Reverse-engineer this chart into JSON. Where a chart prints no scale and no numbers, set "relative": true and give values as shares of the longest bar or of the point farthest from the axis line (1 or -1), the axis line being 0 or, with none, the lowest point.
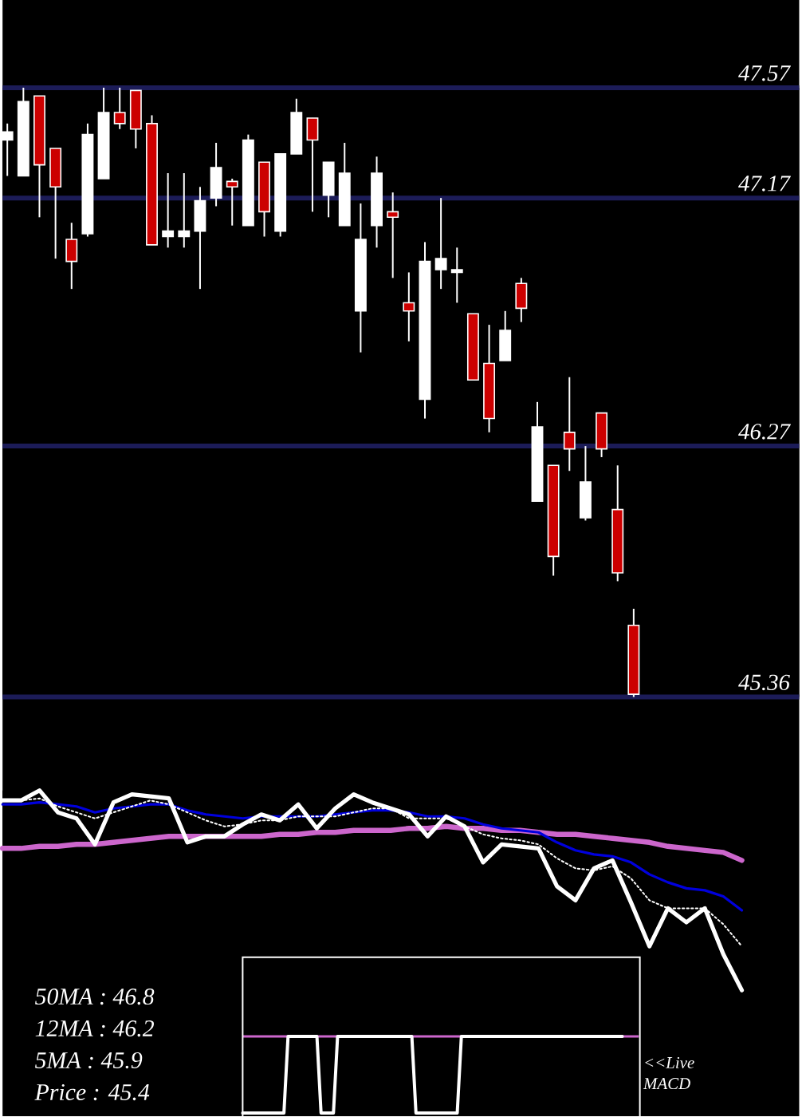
{
  "chart_data": [
    {
      "type": "candlestick",
      "categories": [
        null,
        null,
        null,
        null,
        null,
        null,
        null,
        null,
        null,
        null,
        null,
        null,
        null,
        null,
        null,
        null,
        null,
        null,
        null,
        null,
        null,
        null,
        null,
        null,
        null,
        null,
        null,
        null,
        null,
        null,
        null,
        null,
        null,
        null,
        null,
        null,
        null,
        null,
        null,
        null
      ],
      "ohlc": [
        [
          47.38,
          47.44,
          47.25,
          47.41
        ],
        [
          47.25,
          47.57,
          47.25,
          47.52
        ],
        [
          47.54,
          47.54,
          47.1,
          47.29
        ],
        [
          47.35,
          47.35,
          46.95,
          47.21
        ],
        [
          47.02,
          47.08,
          46.84,
          46.94
        ],
        [
          47.04,
          47.44,
          47.03,
          47.4
        ],
        [
          47.24,
          47.57,
          47.24,
          47.48
        ],
        [
          47.48,
          47.57,
          47.42,
          47.44
        ],
        [
          47.56,
          47.56,
          47.35,
          47.42
        ],
        [
          47.44,
          47.47,
          47.0,
          47.0
        ],
        [
          47.03,
          47.26,
          46.99,
          47.05
        ],
        [
          47.03,
          47.26,
          46.99,
          47.05
        ],
        [
          47.05,
          47.21,
          46.84,
          47.16
        ],
        [
          47.17,
          47.37,
          47.14,
          47.28
        ],
        [
          47.23,
          47.24,
          47.07,
          47.21
        ],
        [
          47.07,
          47.4,
          47.07,
          47.38
        ],
        [
          47.3,
          47.3,
          47.03,
          47.12
        ],
        [
          47.05,
          47.33,
          47.03,
          47.33
        ],
        [
          47.33,
          47.53,
          47.33,
          47.48
        ],
        [
          47.46,
          47.46,
          47.12,
          47.38
        ],
        [
          47.18,
          47.3,
          47.1,
          47.3
        ],
        [
          47.07,
          47.37,
          47.07,
          47.26
        ],
        [
          46.76,
          47.15,
          46.61,
          47.02
        ],
        [
          47.07,
          47.32,
          46.99,
          47.26
        ],
        [
          47.12,
          47.19,
          46.88,
          47.1
        ],
        [
          46.79,
          46.9,
          46.65,
          46.76
        ],
        [
          46.44,
          47.01,
          46.37,
          46.94
        ],
        [
          46.91,
          47.17,
          46.84,
          46.95
        ],
        [
          46.9,
          46.99,
          46.79,
          46.91
        ],
        [
          46.75,
          46.75,
          46.51,
          46.51
        ],
        [
          46.57,
          46.71,
          46.32,
          46.37
        ],
        [
          46.58,
          46.76,
          46.58,
          46.69
        ],
        [
          46.86,
          46.88,
          46.72,
          46.77
        ],
        [
          46.07,
          46.43,
          46.07,
          46.34
        ],
        [
          46.2,
          46.2,
          45.8,
          45.87
        ],
        [
          46.32,
          46.52,
          46.18,
          46.26
        ],
        [
          46.01,
          46.27,
          46.0,
          46.14
        ],
        [
          46.39,
          46.39,
          46.23,
          46.26
        ],
        [
          46.04,
          46.2,
          45.78,
          45.81
        ],
        [
          45.62,
          45.68,
          45.36,
          45.37
        ]
      ],
      "color": "#ffffff",
      "colors": [
        "#ffffff",
        "#ffffff",
        "#cc0000",
        "#cc0000",
        "#cc0000",
        "#ffffff",
        "#ffffff",
        "#cc0000",
        "#cc0000",
        "#cc0000",
        "#ffffff",
        "#ffffff",
        "#ffffff",
        "#ffffff",
        "#cc0000",
        "#ffffff",
        "#cc0000",
        "#ffffff",
        "#ffffff",
        "#cc0000",
        "#ffffff",
        "#ffffff",
        "#ffffff",
        "#ffffff",
        "#cc0000",
        "#cc0000",
        "#ffffff",
        "#ffffff",
        "#ffffff",
        "#cc0000",
        "#cc0000",
        "#ffffff",
        "#cc0000",
        "#ffffff",
        "#cc0000",
        "#cc0000",
        "#ffffff",
        "#cc0000",
        "#cc0000",
        "#cc0000"
      ],
      "ylim": [
        45.36,
        47.57
      ],
      "yticks": [
        45.36,
        46.27,
        47.17,
        47.57
      ],
      "grid": "y",
      "tick_labels": "y"
    },
    {
      "type": "line",
      "relative": true,
      "categories": [
        null,
        null,
        null,
        null,
        null,
        null,
        null,
        null,
        null,
        null,
        null,
        null,
        null,
        null,
        null,
        null,
        null,
        null,
        null,
        null,
        null,
        null,
        null,
        null,
        null,
        null,
        null,
        null,
        null,
        null,
        null,
        null,
        null,
        null,
        null,
        null,
        null,
        null,
        null,
        null,
        null
      ],
      "series": [
        {
          "color": "#cc66cc",
          "values": [
            0.71,
            0.71,
            0.72,
            0.72,
            0.73,
            0.73,
            0.74,
            0.75,
            0.76,
            0.77,
            0.77,
            0.77,
            0.77,
            0.77,
            0.77,
            0.78,
            0.78,
            0.79,
            0.79,
            0.8,
            0.8,
            0.8,
            0.81,
            0.81,
            0.82,
            0.81,
            0.81,
            0.8,
            0.8,
            0.79,
            0.78,
            0.78,
            0.77,
            0.76,
            0.75,
            0.74,
            0.72,
            0.71,
            0.7,
            0.69,
            0.65
          ]
        },
        {
          "color": "#0000dd",
          "values": [
            0.93,
            0.93,
            0.94,
            0.93,
            0.92,
            0.89,
            0.91,
            0.92,
            0.93,
            0.93,
            0.9,
            0.88,
            0.87,
            0.86,
            0.87,
            0.87,
            0.87,
            0.87,
            0.88,
            0.89,
            0.9,
            0.9,
            0.89,
            0.87,
            0.87,
            0.86,
            0.83,
            0.81,
            0.8,
            0.79,
            0.74,
            0.7,
            0.68,
            0.67,
            0.64,
            0.58,
            0.54,
            0.51,
            0.5,
            0.47,
            0.4
          ]
        },
        {
          "color": "#ffffff",
          "line_style": "dotted",
          "values": [
            0.95,
            0.95,
            0.96,
            0.92,
            0.89,
            0.86,
            0.89,
            0.92,
            0.95,
            0.93,
            0.89,
            0.85,
            0.82,
            0.83,
            0.85,
            0.85,
            0.87,
            0.87,
            0.87,
            0.89,
            0.91,
            0.91,
            0.86,
            0.86,
            0.86,
            0.82,
            0.78,
            0.76,
            0.75,
            0.73,
            0.66,
            0.61,
            0.6,
            0.62,
            0.56,
            0.45,
            0.41,
            0.41,
            0.41,
            0.33,
            0.22
          ]
        },
        {
          "color": "#ffffff",
          "values": [
            0.95,
            0.95,
            1.0,
            0.89,
            0.86,
            0.73,
            0.94,
            0.98,
            0.97,
            0.96,
            0.74,
            0.77,
            0.77,
            0.83,
            0.88,
            0.85,
            0.93,
            0.81,
            0.91,
            0.98,
            0.94,
            0.91,
            0.88,
            0.77,
            0.87,
            0.82,
            0.64,
            0.73,
            0.72,
            0.71,
            0.52,
            0.45,
            0.61,
            0.65,
            0.44,
            0.22,
            0.41,
            0.34,
            0.41,
            0.18,
            0
          ]
        }
      ]
    },
    {
      "type": "other",
      "annotations": [
        "50MA : 46.8",
        "12MA : 46.2",
        "5MA : 45.9",
        "Price : 45.4"
      ]
    },
    {
      "type": "line",
      "relative": true,
      "categories": [
        null,
        null,
        null,
        null,
        null,
        null,
        null,
        null,
        null,
        null,
        null,
        null,
        null,
        null,
        null,
        null,
        null,
        null,
        null,
        null,
        null,
        null,
        null,
        null,
        null,
        null,
        null,
        null,
        null,
        null,
        null,
        null,
        null,
        null,
        null,
        null,
        null,
        null,
        null,
        null,
        null,
        null,
        null,
        null,
        null,
        null,
        null,
        null,
        null,
        null,
        null,
        null,
        null,
        null,
        null,
        null,
        null,
        null,
        null,
        null,
        null,
        null,
        null,
        null,
        null,
        null,
        null,
        null,
        null,
        null,
        null,
        null,
        null,
        null,
        null,
        null,
        null,
        null,
        null,
        null,
        null,
        null,
        null,
        null,
        null,
        null,
        null,
        null,
        null,
        null,
        null,
        null,
        null,
        null,
        null,
        null,
        null
      ],
      "series": [
        {
          "color": "#ffffff",
          "values": [
            0,
            0,
            0,
            0,
            0,
            0,
            0,
            0,
            0,
            0,
            0,
            1,
            1,
            1,
            1,
            1,
            1,
            1,
            1,
            0,
            0,
            0,
            0,
            1,
            1,
            1,
            1,
            1,
            1,
            1,
            1,
            1,
            1,
            1,
            1,
            1,
            1,
            1,
            1,
            1,
            1,
            1,
            0,
            0,
            0,
            0,
            0,
            0,
            0,
            0,
            0,
            0,
            0,
            1,
            1,
            1,
            1,
            1,
            1,
            1,
            1,
            1,
            1,
            1,
            1,
            1,
            1,
            1,
            1,
            1,
            1,
            1,
            1,
            1,
            1,
            1,
            1,
            1,
            1,
            1,
            1,
            1,
            1,
            1,
            1,
            1,
            1,
            1,
            1,
            1,
            1,
            1,
            1,
            null,
            null,
            null,
            null
          ]
        }
      ],
      "ref_lines": [
        {
          "axis": "y",
          "value": 1,
          "color": "#cc66cc"
        }
      ],
      "annotations": [
        "<<Live MACD"
      ]
    }
  ]
}
